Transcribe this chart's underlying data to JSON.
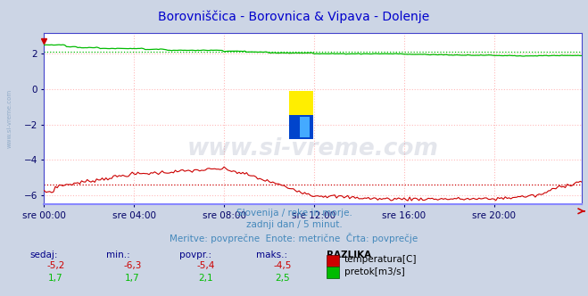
{
  "title": "Borovniščica - Borovnica & Vipava - Dolenje",
  "title_color": "#0000cc",
  "bg_color": "#ccd5e5",
  "plot_bg_color": "#ffffff",
  "grid_color": "#ffbbbb",
  "grid_style": ":",
  "x_tick_labels": [
    "sre 00:00",
    "sre 04:00",
    "sre 08:00",
    "sre 12:00",
    "sre 16:00",
    "sre 20:00"
  ],
  "x_tick_positions": [
    0,
    48,
    96,
    144,
    192,
    240
  ],
  "n_points": 288,
  "ylim": [
    -6.5,
    3.2
  ],
  "yticks": [
    -6,
    -4,
    -2,
    0,
    2
  ],
  "temp_color": "#cc0000",
  "flow_color": "#00bb00",
  "avg_temp": -5.4,
  "avg_flow": 2.1,
  "subtitle1": "Slovenija / reke in morje.",
  "subtitle2": "zadnji dan / 5 minut.",
  "subtitle3": "Meritve: povprečne  Enote: metrične  Črta: povprečje",
  "subtitle_color": "#4488bb",
  "table_header": [
    "sedaj:",
    "min.:",
    "povpr.:",
    "maks.:",
    "RAZLIKA"
  ],
  "table_temp": [
    "-5,2",
    "-6,3",
    "-5,4",
    "-4,5"
  ],
  "table_flow": [
    "1,7",
    "1,7",
    "2,1",
    "2,5"
  ],
  "label_temp": "temperatura[C]",
  "label_flow": "pretok[m3/s]",
  "axis_label_color": "#000066",
  "left_watermark": "www.si-vreme.com",
  "left_watermark_color": "#7799bb",
  "watermark_text": "www.si-vreme.com",
  "watermark_color": "#223366",
  "watermark_alpha": 0.12
}
